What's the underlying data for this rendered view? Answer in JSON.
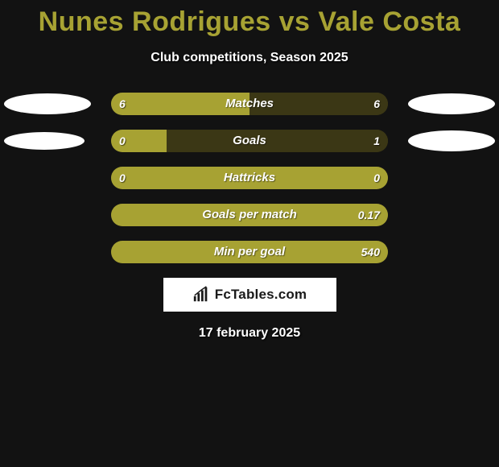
{
  "title": "Nunes Rodrigues vs Vale Costa",
  "subtitle": "Club competitions, Season 2025",
  "date": "17 february 2025",
  "logo_text": "FcTables.com",
  "colors": {
    "background": "#121212",
    "title": "#a7a233",
    "left_fill": "#a7a233",
    "right_fill": "#3b3715",
    "track_bg": "#3b3715",
    "ellipse": "#ffffff"
  },
  "ellipse_sizes": {
    "row0": {
      "left_w": 108,
      "left_h": 26,
      "right_w": 108,
      "right_h": 26
    },
    "row1": {
      "left_w": 100,
      "left_h": 22,
      "right_w": 108,
      "right_h": 26
    }
  },
  "stats": [
    {
      "label": "Matches",
      "left_value": "6",
      "right_value": "6",
      "left_pct": 50,
      "show_ellipses": true,
      "ellipse_key": "row0"
    },
    {
      "label": "Goals",
      "left_value": "0",
      "right_value": "1",
      "left_pct": 20,
      "show_ellipses": true,
      "ellipse_key": "row1"
    },
    {
      "label": "Hattricks",
      "left_value": "0",
      "right_value": "0",
      "left_pct": 100,
      "show_ellipses": false
    },
    {
      "label": "Goals per match",
      "left_value": "",
      "right_value": "0.17",
      "left_pct": 100,
      "show_ellipses": false
    },
    {
      "label": "Min per goal",
      "left_value": "",
      "right_value": "540",
      "left_pct": 100,
      "show_ellipses": false
    }
  ]
}
